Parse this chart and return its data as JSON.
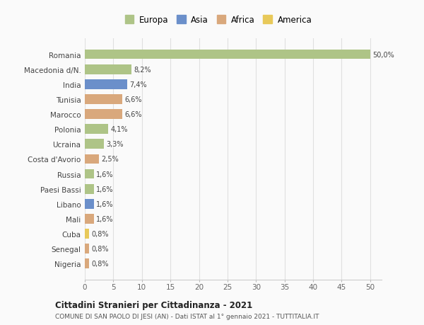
{
  "countries": [
    "Romania",
    "Macedonia d/N.",
    "India",
    "Tunisia",
    "Marocco",
    "Polonia",
    "Ucraina",
    "Costa d'Avorio",
    "Russia",
    "Paesi Bassi",
    "Libano",
    "Mali",
    "Cuba",
    "Senegal",
    "Nigeria"
  ],
  "values": [
    50.0,
    8.2,
    7.4,
    6.6,
    6.6,
    4.1,
    3.3,
    2.5,
    1.6,
    1.6,
    1.6,
    1.6,
    0.8,
    0.8,
    0.8
  ],
  "labels": [
    "50,0%",
    "8,2%",
    "7,4%",
    "6,6%",
    "6,6%",
    "4,1%",
    "3,3%",
    "2,5%",
    "1,6%",
    "1,6%",
    "1,6%",
    "1,6%",
    "0,8%",
    "0,8%",
    "0,8%"
  ],
  "colors": [
    "#aec487",
    "#aec487",
    "#6b8fca",
    "#d9a87c",
    "#d9a87c",
    "#aec487",
    "#aec487",
    "#d9a87c",
    "#aec487",
    "#aec487",
    "#6b8fca",
    "#d9a87c",
    "#e8c95a",
    "#d9a87c",
    "#d9a87c"
  ],
  "legend_labels": [
    "Europa",
    "Asia",
    "Africa",
    "America"
  ],
  "legend_colors": [
    "#aec487",
    "#6b8fca",
    "#d9a87c",
    "#e8c95a"
  ],
  "xlim": [
    0,
    52
  ],
  "xticks": [
    0,
    5,
    10,
    15,
    20,
    25,
    30,
    35,
    40,
    45,
    50
  ],
  "title1": "Cittadini Stranieri per Cittadinanza - 2021",
  "title2": "COMUNE DI SAN PAOLO DI JESI (AN) - Dati ISTAT al 1° gennaio 2021 - TUTTITALIA.IT",
  "bg_color": "#fafafa",
  "grid_color": "#e0e0e0"
}
